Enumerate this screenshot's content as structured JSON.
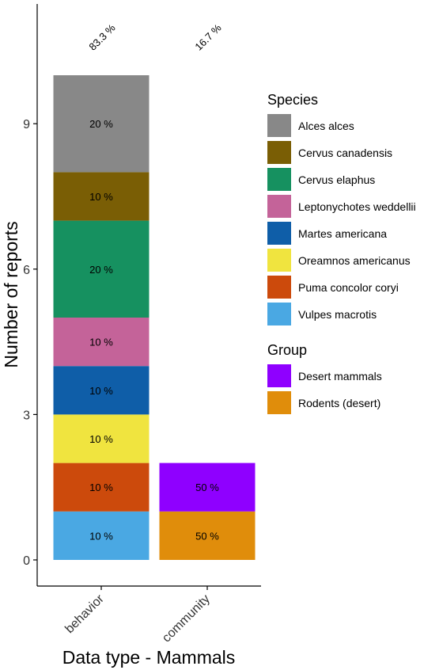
{
  "chart_data": {
    "type": "bar",
    "stacked": true,
    "xlabel": "Data type - Mammals",
    "ylabel": "Number of reports",
    "ylim": [
      0,
      11
    ],
    "yticks": [
      0,
      3,
      6,
      9
    ],
    "grid": false,
    "legend_position": "right",
    "categories": [
      "behavior",
      "community"
    ],
    "category_totals": [
      "83.3 %",
      "16.7 %"
    ],
    "bars": [
      {
        "category": "behavior",
        "segments": [
          {
            "name": "Vulpes macrotis",
            "value": 1,
            "label": "10 %"
          },
          {
            "name": "Puma concolor coryi",
            "value": 1,
            "label": "10 %"
          },
          {
            "name": "Oreamnos americanus",
            "value": 1,
            "label": "10 %"
          },
          {
            "name": "Martes americana",
            "value": 1,
            "label": "10 %"
          },
          {
            "name": "Leptonychotes weddellii",
            "value": 1,
            "label": "10 %"
          },
          {
            "name": "Cervus elaphus",
            "value": 2,
            "label": "20 %"
          },
          {
            "name": "Cervus canadensis",
            "value": 1,
            "label": "10 %"
          },
          {
            "name": "Alces alces",
            "value": 2,
            "label": "20 %"
          }
        ]
      },
      {
        "category": "community",
        "segments": [
          {
            "name": "Rodents (desert)",
            "value": 1,
            "label": "50 %"
          },
          {
            "name": "Desert mammals",
            "value": 1,
            "label": "50 %"
          }
        ]
      }
    ],
    "legends": [
      {
        "title": "Species",
        "entries": [
          {
            "name": "Alces alces",
            "color": "#888888"
          },
          {
            "name": "Cervus canadensis",
            "color": "#7a5e05"
          },
          {
            "name": "Cervus elaphus",
            "color": "#169160"
          },
          {
            "name": "Leptonychotes weddellii",
            "color": "#c46399"
          },
          {
            "name": "Martes americana",
            "color": "#0f5ea8"
          },
          {
            "name": "Oreamnos americanus",
            "color": "#f0e43f"
          },
          {
            "name": "Puma concolor coryi",
            "color": "#cc4a0c"
          },
          {
            "name": "Vulpes macrotis",
            "color": "#4aa8e3"
          }
        ]
      },
      {
        "title": "Group",
        "entries": [
          {
            "name": "Desert mammals",
            "color": "#8f00ff"
          },
          {
            "name": "Rodents (desert)",
            "color": "#e08d0b"
          }
        ]
      }
    ]
  }
}
